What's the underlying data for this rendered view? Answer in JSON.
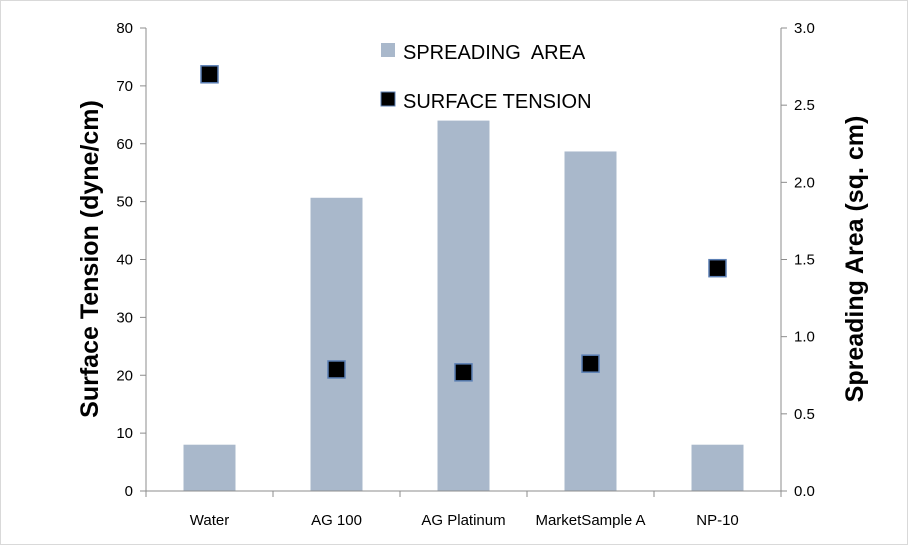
{
  "chart_data": {
    "type": "bar",
    "title": "",
    "categories": [
      "Water",
      "AG 100",
      "AG Platinum",
      "MarketSample A",
      "NP-10"
    ],
    "series": [
      {
        "name": "SPREADING  AREA",
        "type": "bar",
        "axis": "right",
        "values": [
          0.3,
          1.9,
          2.4,
          2.2,
          0.3
        ]
      },
      {
        "name": "SURFACE TENSION",
        "type": "scatter",
        "axis": "left",
        "values": [
          72,
          21,
          20.5,
          22,
          38.5
        ]
      }
    ],
    "ylabel_left": "Surface Tension (dyne/cm)",
    "ylabel_right": "Spreading Area (sq. cm)",
    "ylim_left": [
      0,
      80
    ],
    "ylim_right": [
      0,
      3.0
    ],
    "yticks_left": [
      "0",
      "10",
      "20",
      "30",
      "40",
      "50",
      "60",
      "70",
      "80"
    ],
    "yticks_right": [
      "0.0",
      "0.5",
      "1.0",
      "1.5",
      "2.0",
      "2.5",
      "3.0"
    ],
    "grid": false,
    "legend_position": "top-center",
    "colors": {
      "bar": "#a9b8cb",
      "marker_fill": "#000000",
      "marker_stroke": "#5b7fb4",
      "axis": "#8c8c8c"
    }
  }
}
